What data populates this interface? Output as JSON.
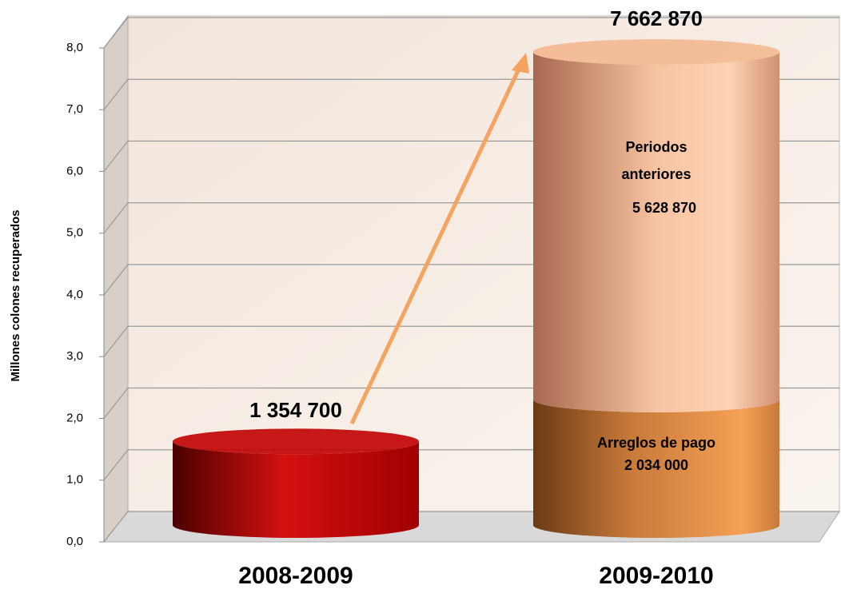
{
  "chart_data": {
    "type": "bar",
    "stacked": true,
    "y_label": "Millones colones recuperados",
    "categories": [
      "2008-2009",
      "2009-2010"
    ],
    "series": [
      {
        "values": [
          1.3547,
          null
        ],
        "value_labels": [
          "1 354 700",
          null
        ],
        "color": "#c00000"
      },
      {
        "name": "Arreglos de pago",
        "values": [
          null,
          2.034
        ],
        "value_labels": [
          null,
          "2 034 000"
        ],
        "color": "#d9853b"
      },
      {
        "name": "Periodos anteriores",
        "values": [
          null,
          5.62887
        ],
        "value_labels": [
          null,
          "5 628 870"
        ],
        "color": "#f4b890"
      }
    ],
    "totals": {
      "values": [
        null,
        7.66287
      ],
      "value_labels": [
        null,
        "7 662 870"
      ]
    },
    "ylim": [
      0,
      8
    ],
    "yticks": [
      {
        "value": 0,
        "label": "0,0"
      },
      {
        "value": 1,
        "label": "1,0"
      },
      {
        "value": 2,
        "label": "2,0"
      },
      {
        "value": 3,
        "label": "3,0"
      },
      {
        "value": 4,
        "label": "4,0"
      },
      {
        "value": 5,
        "label": "5,0"
      },
      {
        "value": 6,
        "label": "6,0"
      },
      {
        "value": 7,
        "label": "7,0"
      },
      {
        "value": 8,
        "label": "8,0"
      }
    ],
    "grid": true
  }
}
